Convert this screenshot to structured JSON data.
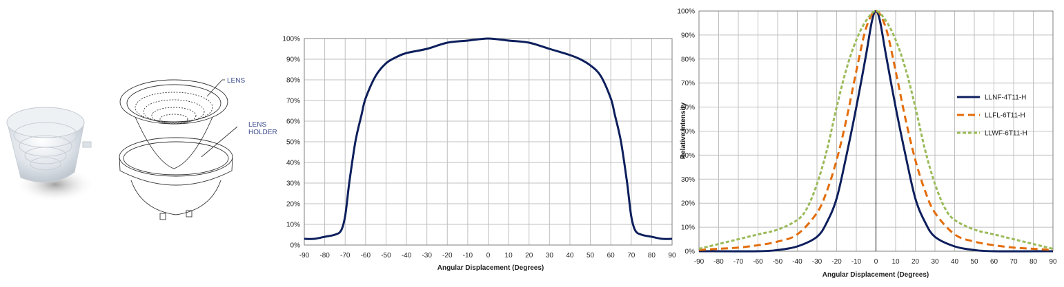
{
  "product": {
    "callouts": {
      "lens": "LENS",
      "holder_line1": "LENS",
      "holder_line2": "HOLDER"
    }
  },
  "colors": {
    "navy": "#0d1f5c",
    "orange": "#e36c0a",
    "green": "#9bbb59",
    "grid": "#bfbfbf"
  },
  "chart_data": [
    {
      "type": "line",
      "title": "",
      "xlabel": "Angular Displacement (Degrees)",
      "ylabel": "",
      "xlim": [
        -90,
        90
      ],
      "ylim": [
        0,
        100
      ],
      "x_ticks": [
        -90,
        -80,
        -70,
        -60,
        -50,
        -40,
        -30,
        -20,
        -10,
        0,
        10,
        20,
        30,
        40,
        50,
        60,
        70,
        80,
        90
      ],
      "y_ticks": [
        "0%",
        "10%",
        "20%",
        "30%",
        "40%",
        "50%",
        "60%",
        "70%",
        "80%",
        "90%",
        "100%"
      ],
      "grid": true,
      "legend": "none",
      "series": [
        {
          "color": "#0d1f5c",
          "dash": "solid",
          "points": [
            [
              -90,
              3
            ],
            [
              -85,
              3
            ],
            [
              -80,
              4
            ],
            [
              -75,
              5
            ],
            [
              -72,
              7
            ],
            [
              -70,
              14
            ],
            [
              -68,
              30
            ],
            [
              -65,
              50
            ],
            [
              -62,
              63
            ],
            [
              -60,
              71
            ],
            [
              -55,
              82
            ],
            [
              -50,
              88
            ],
            [
              -45,
              91
            ],
            [
              -40,
              93
            ],
            [
              -30,
              95
            ],
            [
              -20,
              98
            ],
            [
              -10,
              99
            ],
            [
              0,
              100
            ],
            [
              10,
              99
            ],
            [
              20,
              98
            ],
            [
              30,
              95
            ],
            [
              40,
              92
            ],
            [
              45,
              90
            ],
            [
              50,
              87
            ],
            [
              55,
              82
            ],
            [
              60,
              71
            ],
            [
              62,
              63
            ],
            [
              65,
              50
            ],
            [
              68,
              30
            ],
            [
              70,
              14
            ],
            [
              72,
              7
            ],
            [
              75,
              5
            ],
            [
              80,
              4
            ],
            [
              85,
              3
            ],
            [
              90,
              3
            ]
          ]
        }
      ]
    },
    {
      "type": "line",
      "title": "",
      "xlabel": "Angular Displacement (Degrees)",
      "ylabel": "Relative Intensity",
      "xlim": [
        -90,
        90
      ],
      "ylim": [
        0,
        100
      ],
      "x_ticks": [
        -90,
        -80,
        -70,
        -60,
        -50,
        -40,
        -30,
        -20,
        -10,
        0,
        10,
        20,
        30,
        40,
        50,
        60,
        70,
        80,
        90
      ],
      "y_ticks": [
        "0%",
        "10%",
        "20%",
        "30%",
        "40%",
        "50%",
        "60%",
        "70%",
        "80%",
        "90%",
        "100%"
      ],
      "grid": true,
      "legend": "right",
      "series": [
        {
          "name": "LLNF-4T11-H",
          "color": "#0d1f5c",
          "dash": "solid",
          "points": [
            [
              -90,
              0
            ],
            [
              -60,
              0
            ],
            [
              -50,
              0.5
            ],
            [
              -40,
              2
            ],
            [
              -30,
              6
            ],
            [
              -25,
              12
            ],
            [
              -20,
              22
            ],
            [
              -15,
              40
            ],
            [
              -10,
              60
            ],
            [
              -5,
              82
            ],
            [
              -2,
              96
            ],
            [
              0,
              100
            ],
            [
              2,
              96
            ],
            [
              5,
              82
            ],
            [
              10,
              60
            ],
            [
              15,
              40
            ],
            [
              20,
              22
            ],
            [
              25,
              12
            ],
            [
              30,
              6
            ],
            [
              40,
              2
            ],
            [
              50,
              0.5
            ],
            [
              60,
              0
            ],
            [
              90,
              0
            ]
          ]
        },
        {
          "name": "LLFL-6T11-H",
          "color": "#e36c0a",
          "dash": "dashed",
          "points": [
            [
              -90,
              0.5
            ],
            [
              -80,
              1
            ],
            [
              -70,
              1.5
            ],
            [
              -60,
              2.5
            ],
            [
              -50,
              4
            ],
            [
              -40,
              7
            ],
            [
              -30,
              16
            ],
            [
              -25,
              25
            ],
            [
              -20,
              38
            ],
            [
              -15,
              55
            ],
            [
              -10,
              75
            ],
            [
              -5,
              93
            ],
            [
              0,
              100
            ],
            [
              5,
              93
            ],
            [
              10,
              75
            ],
            [
              15,
              55
            ],
            [
              20,
              38
            ],
            [
              25,
              25
            ],
            [
              30,
              16
            ],
            [
              40,
              7
            ],
            [
              50,
              4
            ],
            [
              60,
              2.5
            ],
            [
              70,
              1.5
            ],
            [
              80,
              1
            ],
            [
              90,
              0.5
            ]
          ]
        },
        {
          "name": "LLWF-6T11-H",
          "color": "#9bbb59",
          "dash": "dotted",
          "points": [
            [
              -90,
              1
            ],
            [
              -80,
              3
            ],
            [
              -70,
              5
            ],
            [
              -60,
              7
            ],
            [
              -50,
              9
            ],
            [
              -40,
              13
            ],
            [
              -35,
              18
            ],
            [
              -30,
              28
            ],
            [
              -25,
              42
            ],
            [
              -20,
              60
            ],
            [
              -15,
              76
            ],
            [
              -10,
              88
            ],
            [
              -5,
              96
            ],
            [
              0,
              100
            ],
            [
              5,
              96
            ],
            [
              10,
              88
            ],
            [
              15,
              76
            ],
            [
              20,
              60
            ],
            [
              25,
              42
            ],
            [
              30,
              28
            ],
            [
              35,
              18
            ],
            [
              40,
              13
            ],
            [
              50,
              9
            ],
            [
              60,
              7
            ],
            [
              70,
              5
            ],
            [
              80,
              3
            ],
            [
              90,
              1
            ]
          ]
        }
      ]
    }
  ]
}
